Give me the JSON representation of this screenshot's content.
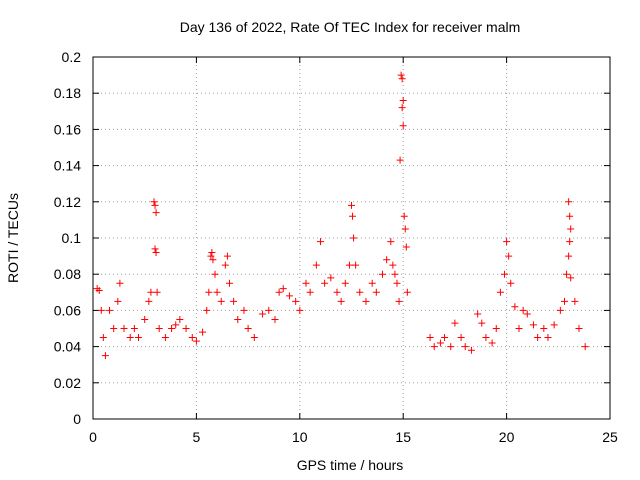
{
  "chart_data": {
    "type": "scatter",
    "title": "Day 136 of 2022, Rate Of TEC Index for receiver malm",
    "xlabel": "GPS time / hours",
    "ylabel": "ROTI / TECUs",
    "xlim": [
      0,
      25
    ],
    "ylim": [
      0,
      0.2
    ],
    "x_ticks": [
      0,
      5,
      10,
      15,
      20,
      25
    ],
    "y_ticks": [
      0,
      0.02,
      0.04,
      0.06,
      0.08,
      0.1,
      0.12,
      0.14,
      0.16,
      0.18,
      0.2
    ],
    "x_tick_labels": [
      "0",
      "5",
      "10",
      "15",
      "20",
      "25"
    ],
    "y_tick_labels": [
      "0",
      "0.02",
      "0.04",
      "0.06",
      "0.08",
      "0.1",
      "0.12",
      "0.14",
      "0.16",
      "0.18",
      "0.2"
    ],
    "grid": true,
    "marker": "+",
    "color": "#ff0000",
    "series": [
      {
        "points": [
          [
            0.2,
            0.072
          ],
          [
            0.3,
            0.071
          ],
          [
            0.4,
            0.06
          ],
          [
            0.5,
            0.045
          ],
          [
            0.6,
            0.035
          ],
          [
            0.8,
            0.06
          ],
          [
            1.0,
            0.05
          ],
          [
            1.2,
            0.065
          ],
          [
            1.3,
            0.075
          ],
          [
            1.5,
            0.05
          ],
          [
            1.8,
            0.045
          ],
          [
            2.0,
            0.05
          ],
          [
            2.2,
            0.045
          ],
          [
            2.5,
            0.055
          ],
          [
            2.7,
            0.065
          ],
          [
            2.8,
            0.07
          ],
          [
            2.95,
            0.12
          ],
          [
            3.0,
            0.118
          ],
          [
            3.05,
            0.114
          ],
          [
            3.0,
            0.094
          ],
          [
            3.05,
            0.092
          ],
          [
            3.1,
            0.07
          ],
          [
            3.2,
            0.05
          ],
          [
            3.5,
            0.045
          ],
          [
            3.8,
            0.05
          ],
          [
            4.0,
            0.052
          ],
          [
            4.2,
            0.055
          ],
          [
            4.5,
            0.05
          ],
          [
            4.8,
            0.045
          ],
          [
            5.0,
            0.043
          ],
          [
            5.3,
            0.048
          ],
          [
            5.5,
            0.06
          ],
          [
            5.6,
            0.07
          ],
          [
            5.7,
            0.09
          ],
          [
            5.75,
            0.092
          ],
          [
            5.8,
            0.088
          ],
          [
            5.9,
            0.08
          ],
          [
            6.0,
            0.07
          ],
          [
            6.2,
            0.065
          ],
          [
            6.4,
            0.085
          ],
          [
            6.5,
            0.09
          ],
          [
            6.6,
            0.075
          ],
          [
            6.8,
            0.065
          ],
          [
            7.0,
            0.055
          ],
          [
            7.3,
            0.06
          ],
          [
            7.5,
            0.05
          ],
          [
            7.8,
            0.045
          ],
          [
            8.2,
            0.058
          ],
          [
            8.5,
            0.06
          ],
          [
            8.8,
            0.055
          ],
          [
            9.0,
            0.07
          ],
          [
            9.2,
            0.072
          ],
          [
            9.5,
            0.068
          ],
          [
            9.8,
            0.065
          ],
          [
            10.0,
            0.06
          ],
          [
            10.3,
            0.075
          ],
          [
            10.5,
            0.07
          ],
          [
            10.8,
            0.085
          ],
          [
            11.0,
            0.098
          ],
          [
            11.2,
            0.075
          ],
          [
            11.5,
            0.078
          ],
          [
            11.8,
            0.07
          ],
          [
            12.0,
            0.065
          ],
          [
            12.2,
            0.075
          ],
          [
            12.4,
            0.085
          ],
          [
            12.5,
            0.118
          ],
          [
            12.55,
            0.112
          ],
          [
            12.6,
            0.1
          ],
          [
            12.7,
            0.085
          ],
          [
            12.9,
            0.07
          ],
          [
            13.2,
            0.065
          ],
          [
            13.5,
            0.075
          ],
          [
            13.7,
            0.07
          ],
          [
            14.0,
            0.08
          ],
          [
            14.2,
            0.088
          ],
          [
            14.4,
            0.098
          ],
          [
            14.5,
            0.085
          ],
          [
            14.6,
            0.08
          ],
          [
            14.7,
            0.075
          ],
          [
            14.8,
            0.065
          ],
          [
            14.85,
            0.143
          ],
          [
            14.9,
            0.19
          ],
          [
            14.95,
            0.188
          ],
          [
            15.0,
            0.176
          ],
          [
            14.95,
            0.172
          ],
          [
            15.0,
            0.162
          ],
          [
            15.05,
            0.112
          ],
          [
            15.1,
            0.105
          ],
          [
            15.15,
            0.095
          ],
          [
            15.2,
            0.07
          ],
          [
            16.3,
            0.045
          ],
          [
            16.5,
            0.04
          ],
          [
            16.8,
            0.042
          ],
          [
            17.0,
            0.045
          ],
          [
            17.3,
            0.04
          ],
          [
            17.5,
            0.053
          ],
          [
            17.8,
            0.045
          ],
          [
            18.0,
            0.04
          ],
          [
            18.3,
            0.038
          ],
          [
            18.6,
            0.058
          ],
          [
            18.8,
            0.053
          ],
          [
            19.0,
            0.045
          ],
          [
            19.3,
            0.042
          ],
          [
            19.5,
            0.05
          ],
          [
            19.7,
            0.07
          ],
          [
            19.9,
            0.08
          ],
          [
            20.0,
            0.098
          ],
          [
            20.1,
            0.09
          ],
          [
            20.2,
            0.075
          ],
          [
            20.4,
            0.062
          ],
          [
            20.6,
            0.05
          ],
          [
            20.8,
            0.06
          ],
          [
            21.0,
            0.058
          ],
          [
            21.3,
            0.052
          ],
          [
            21.5,
            0.045
          ],
          [
            21.8,
            0.05
          ],
          [
            22.0,
            0.045
          ],
          [
            22.3,
            0.052
          ],
          [
            22.6,
            0.06
          ],
          [
            22.8,
            0.065
          ],
          [
            22.9,
            0.08
          ],
          [
            23.0,
            0.12
          ],
          [
            23.05,
            0.112
          ],
          [
            23.1,
            0.105
          ],
          [
            23.05,
            0.098
          ],
          [
            23.0,
            0.09
          ],
          [
            23.1,
            0.078
          ],
          [
            23.3,
            0.065
          ],
          [
            23.5,
            0.05
          ],
          [
            23.8,
            0.04
          ]
        ]
      }
    ]
  }
}
